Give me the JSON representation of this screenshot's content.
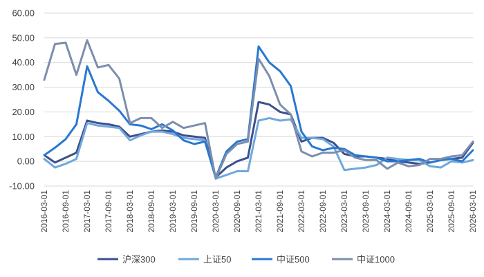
{
  "chart_data": {
    "type": "line",
    "title": "",
    "xlabel": "",
    "ylabel": "",
    "ylim": [
      -10,
      60
    ],
    "yticks": [
      "60.00",
      "50.00",
      "40.00",
      "30.00",
      "20.00",
      "10.00",
      "0.00",
      "-10.00"
    ],
    "grid": "horizontal",
    "legend_position": "bottom",
    "x": [
      "2016-03-01",
      "2016-06-01",
      "2016-09-01",
      "2016-12-01",
      "2017-03-01",
      "2017-06-01",
      "2017-09-01",
      "2017-12-01",
      "2018-03-01",
      "2018-06-01",
      "2018-09-01",
      "2018-12-01",
      "2019-03-01",
      "2019-06-01",
      "2019-09-01",
      "2019-12-01",
      "2020-03-01",
      "2020-06-01",
      "2020-09-01",
      "2020-12-01",
      "2021-03-01",
      "2021-06-01",
      "2021-09-01",
      "2021-12-01",
      "2022-03-01",
      "2022-06-01",
      "2022-09-01",
      "2022-12-01",
      "2023-03-01",
      "2023-06-01",
      "2023-09-01",
      "2023-12-01",
      "2024-03-01",
      "2024-06-01",
      "2024-09-01",
      "2024-12-01",
      "2025-03-01",
      "2025-06-01",
      "2025-09-01",
      "2025-12-01",
      "2026-03-01"
    ],
    "xtick_labels": [
      "2016-03-01",
      "2016-09-01",
      "2017-03-01",
      "2017-09-01",
      "2018-03-01",
      "2018-09-01",
      "2019-03-01",
      "2019-09-01",
      "2020-03-01",
      "2020-09-01",
      "2021-03-01",
      "2021-09-01",
      "2022-03-01",
      "2022-09-01",
      "2023-03-01",
      "2023-09-01",
      "2024-03-01",
      "2024-09-01",
      "2025-03-01",
      "2025-09-01",
      "2026-03-01"
    ],
    "series": [
      {
        "name": "沪深300",
        "color": "#3D4F8F",
        "values": [
          2.5,
          -0.5,
          1.5,
          3.5,
          16.5,
          15.5,
          15,
          14,
          10,
          11,
          12,
          12.5,
          12,
          10.5,
          10,
          9.5,
          -6.5,
          -2.5,
          0,
          1.5,
          24,
          23,
          20,
          19,
          8,
          9.5,
          9.5,
          7.5,
          3,
          2,
          2,
          1.5,
          1,
          0,
          -0.5,
          -1,
          -0.5,
          0.5,
          1,
          1.5,
          7.5
        ]
      },
      {
        "name": "上证50",
        "color": "#6FA8DC",
        "values": [
          1,
          -2.5,
          -1,
          1,
          15.5,
          14.5,
          14,
          13.5,
          8.5,
          10.5,
          12,
          12,
          11,
          9.5,
          9,
          8.5,
          -7,
          -5.5,
          -4,
          -4,
          16.5,
          17.5,
          16.5,
          17,
          9.5,
          9.5,
          9,
          6,
          -3.5,
          -3,
          -2.5,
          -1.5,
          1.5,
          1,
          0.5,
          0.5,
          -2,
          -2.5,
          0,
          -0.5,
          0.5
        ]
      },
      {
        "name": "中证500",
        "color": "#2878D0",
        "values": [
          2.5,
          5.5,
          9,
          15,
          38.5,
          28,
          24.5,
          20.5,
          15,
          14.5,
          13,
          15,
          12.5,
          8.5,
          7,
          8,
          -6.5,
          4,
          8,
          9,
          46.5,
          40,
          36.5,
          30.5,
          12,
          6,
          4.5,
          5.5,
          5,
          2.5,
          2,
          1.5,
          0,
          0,
          0.5,
          1,
          -0.5,
          0.5,
          1,
          0,
          4.5
        ]
      },
      {
        "name": "中证1000",
        "color": "#7C8EAD",
        "values": [
          33,
          47.5,
          48,
          35,
          49,
          38,
          39,
          33.5,
          15.5,
          17.5,
          17.5,
          13.5,
          16,
          13.5,
          14.5,
          15.5,
          -7,
          3,
          7,
          8,
          41.5,
          34.5,
          23,
          19,
          4,
          2,
          3.5,
          3.5,
          4.5,
          1.5,
          0.5,
          0.5,
          -3,
          -0.5,
          -2,
          -1.5,
          1,
          1,
          2,
          2.5,
          8
        ]
      }
    ]
  }
}
